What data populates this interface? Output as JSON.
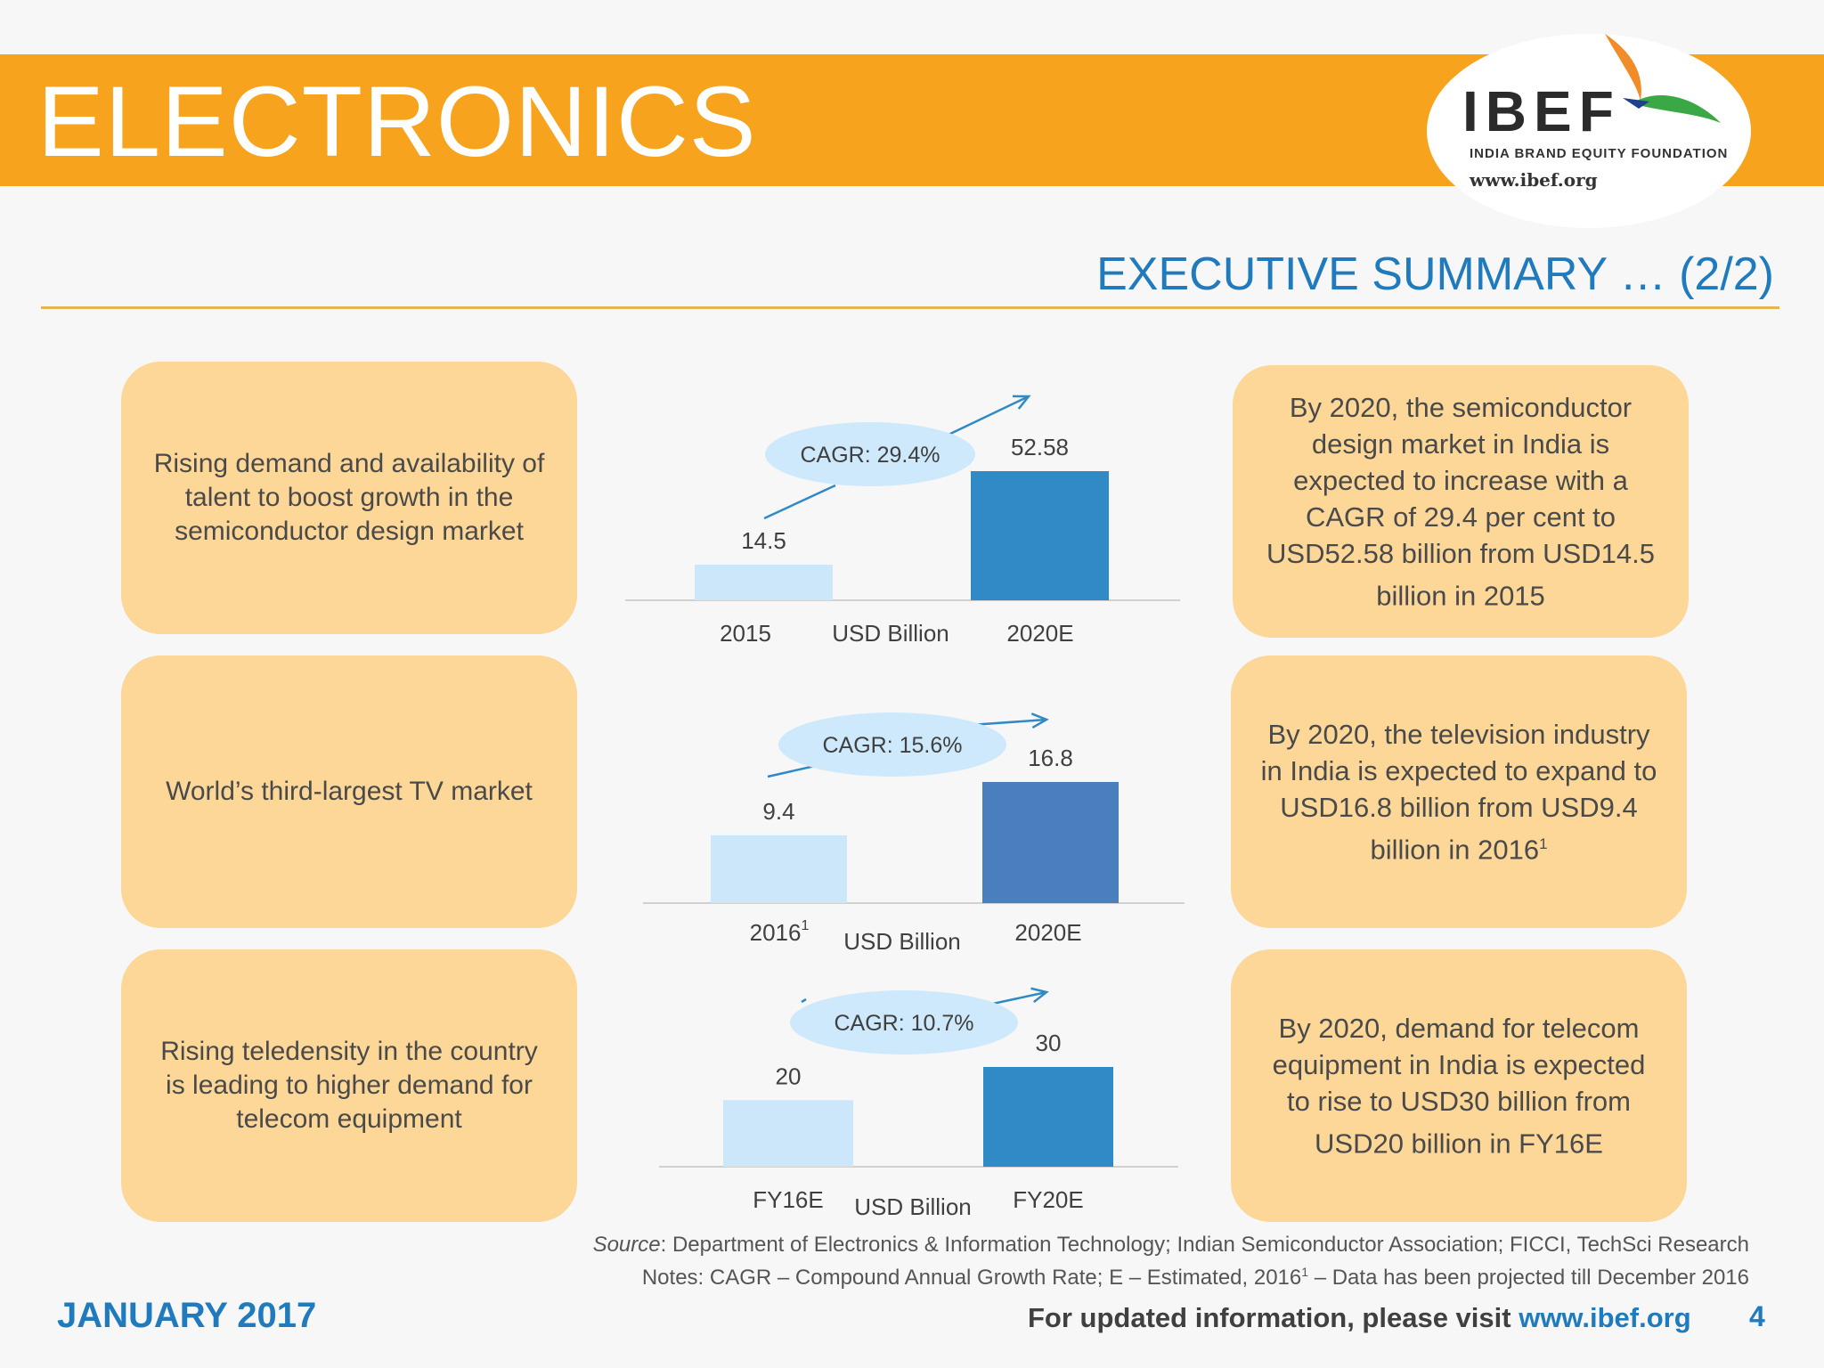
{
  "header": {
    "title": "ELECTRONICS",
    "logo": {
      "name": "IBEF",
      "tagline": "INDIA BRAND EQUITY FOUNDATION",
      "url": "www.ibef.org"
    }
  },
  "section_title": "EXECUTIVE SUMMARY … (2/2)",
  "left_cards": [
    "Rising demand and availability of talent to boost growth in the semiconductor design market",
    "World’s third-largest TV market",
    "Rising teledensity in the country is leading to higher demand for telecom equipment"
  ],
  "right_cards": [
    {
      "text": "By 2020, the semiconductor design market in India is expected to increase with a CAGR of 29.4 per cent to USD52.58 billion from USD14.5 billion in 2015",
      "sup": ""
    },
    {
      "text": "By 2020, the television industry in India is expected to expand to USD16.8 billion from USD9.4 billion in 2016",
      "sup": "1"
    },
    {
      "text": "By 2020, demand for telecom equipment in India is expected to rise to USD30 billion from USD20 billion in FY16E",
      "sup": ""
    }
  ],
  "chart_data": [
    {
      "type": "bar",
      "categories": [
        "2015",
        "2020E"
      ],
      "category_sup": [
        "",
        ""
      ],
      "values": [
        14.5,
        52.58
      ],
      "value_labels": [
        "14.5",
        "52.58"
      ],
      "xlabel": "USD Billion",
      "cagr": "CAGR: 29.4%",
      "colors": [
        "#cbe7f9",
        "#2f8ac6"
      ]
    },
    {
      "type": "bar",
      "categories": [
        "2016",
        "2020E"
      ],
      "category_sup": [
        "1",
        ""
      ],
      "values": [
        9.4,
        16.8
      ],
      "value_labels": [
        "9.4",
        "16.8"
      ],
      "xlabel": "USD Billion",
      "cagr": "CAGR: 15.6%",
      "colors": [
        "#cbe7f9",
        "#4a7fbd"
      ]
    },
    {
      "type": "bar",
      "categories": [
        "FY16E",
        "FY20E"
      ],
      "category_sup": [
        "",
        ""
      ],
      "values": [
        20,
        30
      ],
      "value_labels": [
        "20",
        "30"
      ],
      "xlabel": "USD Billion",
      "cagr": "CAGR: 10.7%",
      "colors": [
        "#cbe7f9",
        "#2f8ac6"
      ]
    }
  ],
  "footer": {
    "source_label": "Source",
    "source_text": ": Department of Electronics & Information Technology; Indian Semiconductor Association; FICCI, TechSci Research",
    "notes_text": "Notes: CAGR – Compound Annual Growth Rate; E – Estimated, 2016",
    "notes_sup": "1",
    "notes_tail": " – Data has been projected till December 2016",
    "date": "JANUARY 2017",
    "visit_text": "For updated information, please visit ",
    "visit_link": "www.ibef.org",
    "page_number": "4"
  }
}
